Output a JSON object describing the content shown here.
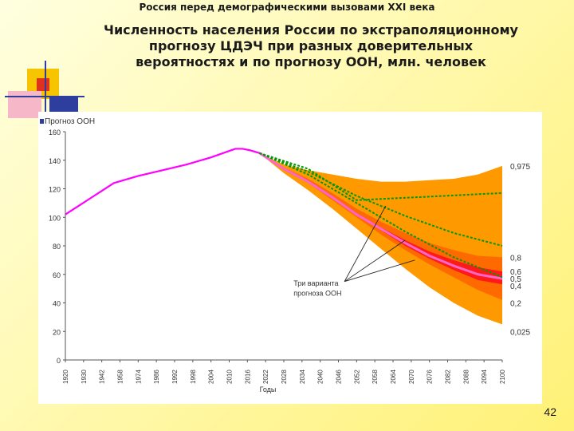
{
  "slide": {
    "header_title": "Россия перед демографическими вызовами XXI века",
    "title": "Численность населения России по экстраполяционному прогнозу ЦДЭЧ при разных доверительных вероятностях и по прогнозу ООН, млн. человек",
    "page_number": "42"
  },
  "colors": {
    "deco_yellow": "#f7c400",
    "deco_red": "#e0301e",
    "deco_blue": "#2d3e9e",
    "deco_pink": "#f6b7c8",
    "outer_band": "#ff9900",
    "inner_band": "#ff6a00",
    "core_band": "#ff1a1a",
    "historical_line": "#ff00ff",
    "median_line": "#ff66cc",
    "un_line": "#009900"
  },
  "chart_data": {
    "type": "area",
    "legend": "Прогноз ООН",
    "xlabel": "Годы",
    "ylabel": "",
    "ylim": [
      0,
      160
    ],
    "xlim": [
      1920,
      2100
    ],
    "yticks": [
      0,
      20,
      40,
      60,
      80,
      100,
      120,
      140,
      160
    ],
    "xticks": [
      "1920",
      "1930",
      "1942",
      "1958",
      "1974",
      "1986",
      "1992",
      "1998",
      "2004",
      "2010",
      "2016",
      "2022",
      "2028",
      "2034",
      "2040",
      "2046",
      "2052",
      "2058",
      "2064",
      "2070",
      "2076",
      "2082",
      "2088",
      "2094",
      "2100"
    ],
    "historical": {
      "x": [
        1920,
        1930,
        1940,
        1950,
        1960,
        1970,
        1980,
        1985,
        1990,
        1993,
        1996,
        2000
      ],
      "y": [
        102,
        113,
        124,
        129,
        133,
        137,
        142,
        145,
        148,
        148,
        147,
        145
      ]
    },
    "forecast_years": [
      2000,
      2010,
      2020,
      2030,
      2040,
      2050,
      2060,
      2070,
      2080,
      2090,
      2100
    ],
    "confidence_bands": [
      {
        "name": "0,975",
        "upper": [
          145,
          137,
          133,
          130,
          127,
          125,
          125,
          126,
          127,
          130,
          136
        ]
      },
      {
        "name": "0,025",
        "lower": [
          145,
          131,
          119,
          106,
          92,
          78,
          64,
          51,
          40,
          31,
          25
        ]
      },
      {
        "name": "0,8",
        "upper": [
          145,
          135,
          127,
          117,
          106,
          97,
          89,
          82,
          77,
          73,
          72
        ]
      },
      {
        "name": "0,2",
        "lower": [
          145,
          133,
          124,
          112,
          100,
          88,
          77,
          67,
          58,
          49,
          42
        ]
      },
      {
        "name": "0,6",
        "upper": [
          145,
          134,
          126,
          115,
          103,
          93,
          84,
          76,
          70,
          65,
          62
        ]
      },
      {
        "name": "0,4",
        "lower": [
          145,
          134,
          125,
          114,
          102,
          91,
          80,
          71,
          63,
          56,
          53
        ]
      }
    ],
    "median": {
      "name": "0,5",
      "y": [
        145,
        134,
        125,
        114,
        102,
        92,
        82,
        73,
        66,
        60,
        57
      ]
    },
    "un_forecast": [
      {
        "x": [
          2000,
          2020,
          2040,
          2100
        ],
        "y": [
          145,
          134,
          112,
          117
        ]
      },
      {
        "x": [
          2000,
          2020,
          2040,
          2060,
          2080,
          2100
        ],
        "y": [
          145,
          132,
          115,
          101,
          89,
          80
        ]
      },
      {
        "x": [
          2000,
          2020,
          2040,
          2060,
          2080,
          2100
        ],
        "y": [
          145,
          130,
          110,
          90,
          72,
          58
        ]
      }
    ],
    "band_labels": [
      "0,975",
      "0,8",
      "0,6",
      "0,5",
      "0,4",
      "0,2",
      "0,025"
    ],
    "annotation": "Три варианта прогноза ООН"
  }
}
